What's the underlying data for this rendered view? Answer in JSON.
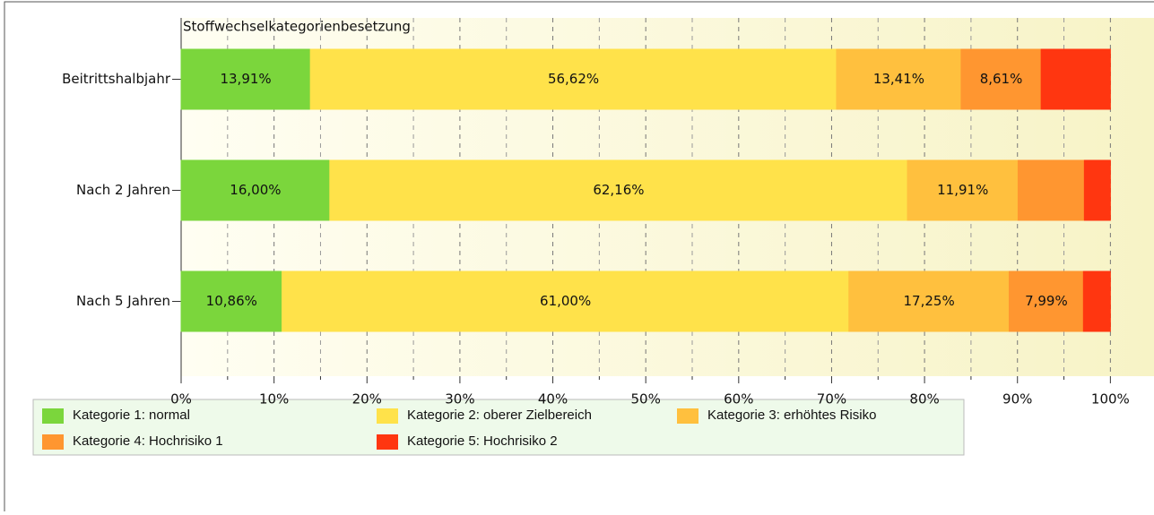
{
  "chart_data": {
    "type": "stacked-barh",
    "title": "Stoffwechselkategorienbesetzung",
    "categories": [
      "Beitrittshalbjahr",
      "Nach 2 Jahren",
      "Nach 5 Jahren"
    ],
    "series": [
      {
        "name": "Kategorie 1: normal",
        "color": "#7bd63c",
        "values": [
          13.91,
          16.0,
          10.86
        ],
        "value_labels": [
          "13,91%",
          "16,00%",
          "10,86%"
        ]
      },
      {
        "name": "Kategorie 2: oberer Zielbereich",
        "color": "#ffe24a",
        "values": [
          56.62,
          62.16,
          61.0
        ],
        "value_labels": [
          "56,62%",
          "62,16%",
          "61,00%"
        ]
      },
      {
        "name": "Kategorie 3: erhöhtes Risiko",
        "color": "#ffc03e",
        "values": [
          13.41,
          11.91,
          17.25
        ],
        "value_labels": [
          "13,41%",
          "11,91%",
          "17,25%"
        ]
      },
      {
        "name": "Kategorie 4: Hochrisiko 1",
        "color": "#ff9630",
        "values": [
          8.61,
          7.13,
          7.99
        ],
        "value_labels": [
          "8,61%",
          null,
          "7,99%"
        ]
      },
      {
        "name": "Kategorie 5: Hochrisiko 2",
        "color": "#ff3610",
        "values": [
          7.45,
          2.8,
          2.9
        ],
        "value_labels": [
          null,
          null,
          null
        ]
      }
    ],
    "xlim": [
      0,
      104.5
    ],
    "xticks": [
      {
        "value": 0,
        "label": "0%"
      },
      {
        "value": 10,
        "label": "10%"
      },
      {
        "value": 20,
        "label": "20%"
      },
      {
        "value": 30,
        "label": "30%"
      },
      {
        "value": 40,
        "label": "40%"
      },
      {
        "value": 50,
        "label": "50%"
      },
      {
        "value": 60,
        "label": "60%"
      },
      {
        "value": 70,
        "label": "70%"
      },
      {
        "value": 80,
        "label": "80%"
      },
      {
        "value": 90,
        "label": "90%"
      },
      {
        "value": 100,
        "label": "100%"
      }
    ],
    "xminorticks": [
      5,
      15,
      25,
      35,
      45,
      55,
      65,
      75,
      85,
      95
    ],
    "grid": true,
    "legend": "bottom"
  }
}
